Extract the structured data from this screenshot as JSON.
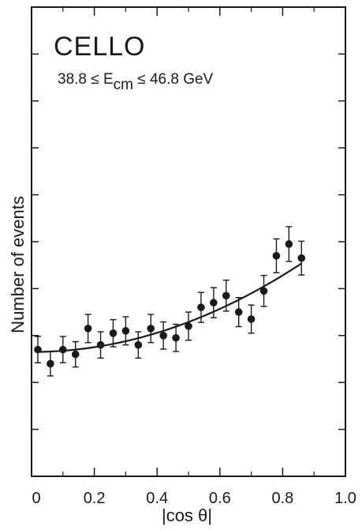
{
  "chart_data": {
    "type": "scatter",
    "title": "CELLO",
    "subtitle": {
      "pre": "38.8 ≤ E",
      "sub": "cm",
      "post": " ≤ 46.8 GeV"
    },
    "xlabel": "|cos θ|",
    "ylabel": "Number of events",
    "xlim": [
      0,
      1.0
    ],
    "ylim": [
      0,
      100
    ],
    "x_ticks": [
      "0",
      "0.2",
      "0.4",
      "0.6",
      "0.8",
      "1.0"
    ],
    "x_tick_values": [
      0,
      0.2,
      0.4,
      0.6,
      0.8,
      1.0
    ],
    "y_tick_values": [
      0,
      10,
      20,
      30,
      40,
      50,
      60,
      70,
      80,
      90,
      100
    ],
    "grid": false,
    "series": [
      {
        "x": [
          0.02,
          0.06,
          0.1,
          0.14,
          0.18,
          0.22,
          0.26,
          0.3,
          0.34,
          0.38,
          0.42,
          0.46,
          0.5,
          0.54,
          0.58,
          0.62,
          0.66,
          0.7,
          0.74,
          0.78,
          0.82,
          0.86
        ],
        "y": [
          27.0,
          24.0,
          27.0,
          26.0,
          31.5,
          28.0,
          30.5,
          31.0,
          28.0,
          31.5,
          30.0,
          29.5,
          32.0,
          36.0,
          37.0,
          38.5,
          35.0,
          33.5,
          39.5,
          47.0,
          49.5,
          46.5
        ],
        "err": [
          2.8,
          2.6,
          2.8,
          2.7,
          3.0,
          2.8,
          2.9,
          3.0,
          2.8,
          3.0,
          2.9,
          2.9,
          3.0,
          3.2,
          3.2,
          3.3,
          3.1,
          3.0,
          3.3,
          3.6,
          3.7,
          3.6
        ]
      }
    ],
    "fit_curve": {
      "coefficients": {
        "a": 26.5,
        "b": 25.5
      },
      "x_range": [
        0.02,
        0.86
      ]
    }
  }
}
